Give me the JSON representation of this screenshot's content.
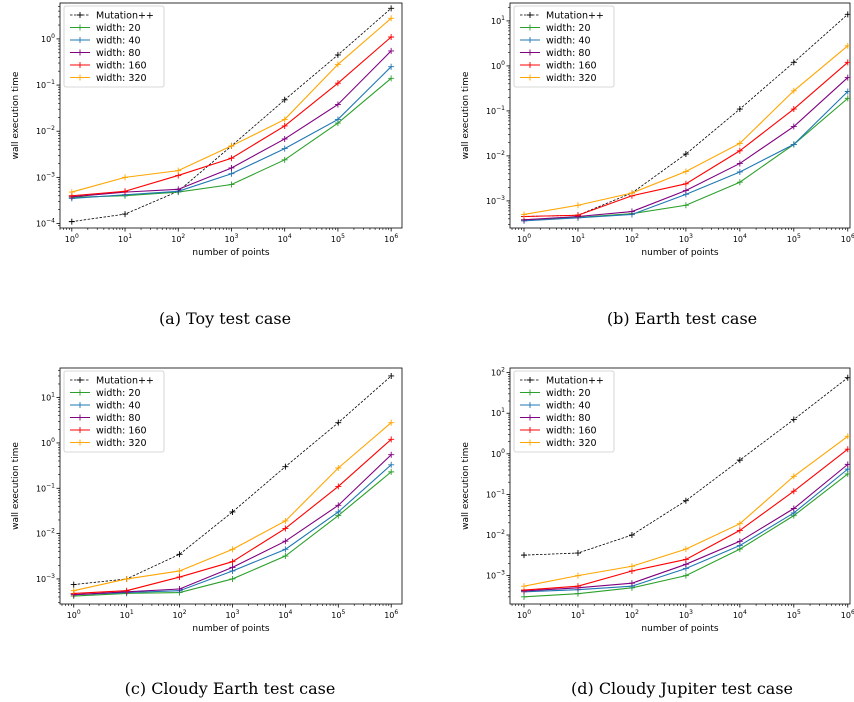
{
  "chart_data": [
    {
      "type": "line",
      "caption": "(a) Toy test case",
      "xlabel": "number of points",
      "ylabel": "wall execution time",
      "x": [
        1,
        10,
        100,
        1000,
        10000,
        100000,
        1000000
      ],
      "x_scale": "log",
      "y_scale": "log",
      "xlim": [
        0.6,
        1600000
      ],
      "ylim": [
        8e-05,
        6
      ],
      "x_ticks": [
        {
          "v": 1,
          "e": "0"
        },
        {
          "v": 10,
          "e": "1"
        },
        {
          "v": 100,
          "e": "2"
        },
        {
          "v": 1000,
          "e": "3"
        },
        {
          "v": 10000,
          "e": "4"
        },
        {
          "v": 100000,
          "e": "5"
        },
        {
          "v": 1000000,
          "e": "6"
        }
      ],
      "y_ticks": [
        {
          "v": 0.0001,
          "e": "−4"
        },
        {
          "v": 0.001,
          "e": "−3"
        },
        {
          "v": 0.01,
          "e": "−2"
        },
        {
          "v": 0.1,
          "e": "−1"
        },
        {
          "v": 1,
          "e": "0"
        }
      ],
      "legend": "top-left",
      "series": [
        {
          "name": "Mutation++",
          "color": "#000000",
          "dashed": true,
          "values": [
            0.00011,
            0.00016,
            0.0005,
            0.0048,
            0.048,
            0.45,
            4.6
          ]
        },
        {
          "name": "width: 20",
          "color": "#2ca02c",
          "dashed": false,
          "values": [
            0.00037,
            0.0004,
            0.00048,
            0.0007,
            0.0024,
            0.015,
            0.14
          ]
        },
        {
          "name": "width: 40",
          "color": "#1f77b4",
          "dashed": false,
          "values": [
            0.00035,
            0.00042,
            0.0005,
            0.0012,
            0.0042,
            0.018,
            0.25
          ]
        },
        {
          "name": "width: 80",
          "color": "#800080",
          "dashed": false,
          "values": [
            0.00038,
            0.00048,
            0.00055,
            0.0016,
            0.0068,
            0.038,
            0.55
          ]
        },
        {
          "name": "width: 160",
          "color": "#ff0000",
          "dashed": false,
          "values": [
            0.0004,
            0.0005,
            0.0011,
            0.0026,
            0.013,
            0.11,
            1.1
          ]
        },
        {
          "name": "width: 320",
          "color": "#ffa500",
          "dashed": false,
          "values": [
            0.00048,
            0.001,
            0.0014,
            0.0048,
            0.018,
            0.28,
            2.8
          ]
        }
      ]
    },
    {
      "type": "line",
      "caption": "(b) Earth test case",
      "xlabel": "number of points",
      "ylabel": "wall execution time",
      "x": [
        1,
        10,
        100,
        1000,
        10000,
        100000,
        1000000
      ],
      "x_scale": "log",
      "y_scale": "log",
      "xlim": [
        0.55,
        1100000
      ],
      "ylim": [
        0.00025,
        25
      ],
      "x_ticks": [
        {
          "v": 1,
          "e": "0"
        },
        {
          "v": 10,
          "e": "1"
        },
        {
          "v": 100,
          "e": "2"
        },
        {
          "v": 1000,
          "e": "3"
        },
        {
          "v": 10000,
          "e": "4"
        },
        {
          "v": 100000,
          "e": "5"
        },
        {
          "v": 1000000,
          "e": "6"
        }
      ],
      "y_ticks": [
        {
          "v": 0.001,
          "e": "−3"
        },
        {
          "v": 0.01,
          "e": "−2"
        },
        {
          "v": 0.1,
          "e": "−1"
        },
        {
          "v": 1,
          "e": "0"
        },
        {
          "v": 10,
          "e": "1"
        }
      ],
      "legend": "top-left",
      "series": [
        {
          "name": "Mutation++",
          "color": "#000000",
          "dashed": true,
          "values": [
            0.00045,
            0.00048,
            0.0015,
            0.011,
            0.11,
            1.2,
            14
          ]
        },
        {
          "name": "width: 20",
          "color": "#2ca02c",
          "dashed": false,
          "values": [
            0.00038,
            0.00043,
            0.00052,
            0.0008,
            0.0026,
            0.018,
            0.19
          ]
        },
        {
          "name": "width: 40",
          "color": "#1f77b4",
          "dashed": false,
          "values": [
            0.00036,
            0.00042,
            0.0005,
            0.0014,
            0.0044,
            0.018,
            0.27
          ]
        },
        {
          "name": "width: 80",
          "color": "#800080",
          "dashed": false,
          "values": [
            0.00038,
            0.00045,
            0.00058,
            0.0017,
            0.0068,
            0.045,
            0.55
          ]
        },
        {
          "name": "width: 160",
          "color": "#ff0000",
          "dashed": false,
          "values": [
            0.00045,
            0.00048,
            0.0013,
            0.0024,
            0.013,
            0.11,
            1.2
          ]
        },
        {
          "name": "width: 320",
          "color": "#ffa500",
          "dashed": false,
          "values": [
            0.0005,
            0.0008,
            0.0015,
            0.0045,
            0.019,
            0.28,
            2.8
          ]
        }
      ]
    },
    {
      "type": "line",
      "caption": "(c) Cloudy Earth test case",
      "xlabel": "number of points",
      "ylabel": "wall execution time",
      "x": [
        1,
        10,
        100,
        1000,
        10000,
        100000,
        1000000
      ],
      "x_scale": "log",
      "y_scale": "log",
      "xlim": [
        0.55,
        1600000
      ],
      "ylim": [
        0.00028,
        45
      ],
      "x_ticks": [
        {
          "v": 1,
          "e": "0"
        },
        {
          "v": 10,
          "e": "1"
        },
        {
          "v": 100,
          "e": "2"
        },
        {
          "v": 1000,
          "e": "3"
        },
        {
          "v": 10000,
          "e": "4"
        },
        {
          "v": 100000,
          "e": "5"
        },
        {
          "v": 1000000,
          "e": "6"
        }
      ],
      "y_ticks": [
        {
          "v": 0.001,
          "e": "−3"
        },
        {
          "v": 0.01,
          "e": "−2"
        },
        {
          "v": 0.1,
          "e": "−1"
        },
        {
          "v": 1,
          "e": "0"
        },
        {
          "v": 10,
          "e": "1"
        }
      ],
      "legend": "top-left",
      "series": [
        {
          "name": "Mutation++",
          "color": "#000000",
          "dashed": true,
          "values": [
            0.00075,
            0.001,
            0.0035,
            0.03,
            0.3,
            2.8,
            30
          ]
        },
        {
          "name": "width: 20",
          "color": "#2ca02c",
          "dashed": false,
          "values": [
            0.00042,
            0.00048,
            0.0005,
            0.001,
            0.0032,
            0.025,
            0.23
          ]
        },
        {
          "name": "width: 40",
          "color": "#1f77b4",
          "dashed": false,
          "values": [
            0.00045,
            0.0005,
            0.00055,
            0.0015,
            0.0045,
            0.03,
            0.33
          ]
        },
        {
          "name": "width: 80",
          "color": "#800080",
          "dashed": false,
          "values": [
            0.00045,
            0.00052,
            0.0006,
            0.0018,
            0.0068,
            0.042,
            0.55
          ]
        },
        {
          "name": "width: 160",
          "color": "#ff0000",
          "dashed": false,
          "values": [
            0.00048,
            0.00055,
            0.0011,
            0.0024,
            0.013,
            0.11,
            1.2
          ]
        },
        {
          "name": "width: 320",
          "color": "#ffa500",
          "dashed": false,
          "values": [
            0.00055,
            0.001,
            0.0015,
            0.0045,
            0.019,
            0.28,
            2.8
          ]
        }
      ]
    },
    {
      "type": "line",
      "caption": "(d) Cloudy Jupiter test case",
      "xlabel": "number of points",
      "ylabel": "wall execution time",
      "x": [
        1,
        10,
        100,
        1000,
        10000,
        100000,
        1000000
      ],
      "x_scale": "log",
      "y_scale": "log",
      "xlim": [
        0.55,
        1100000
      ],
      "ylim": [
        0.0002,
        130
      ],
      "x_ticks": [
        {
          "v": 1,
          "e": "0"
        },
        {
          "v": 10,
          "e": "1"
        },
        {
          "v": 100,
          "e": "2"
        },
        {
          "v": 1000,
          "e": "3"
        },
        {
          "v": 10000,
          "e": "4"
        },
        {
          "v": 100000,
          "e": "5"
        },
        {
          "v": 1000000,
          "e": "6"
        }
      ],
      "y_ticks": [
        {
          "v": 0.001,
          "e": "−3"
        },
        {
          "v": 0.01,
          "e": "−2"
        },
        {
          "v": 0.1,
          "e": "−1"
        },
        {
          "v": 1,
          "e": "0"
        },
        {
          "v": 10,
          "e": "1"
        },
        {
          "v": 100,
          "e": "2"
        }
      ],
      "legend": "top-left",
      "series": [
        {
          "name": "Mutation++",
          "color": "#000000",
          "dashed": true,
          "values": [
            0.0032,
            0.0036,
            0.01,
            0.07,
            0.7,
            7,
            75
          ]
        },
        {
          "name": "width: 20",
          "color": "#2ca02c",
          "dashed": false,
          "values": [
            0.0003,
            0.00036,
            0.0005,
            0.001,
            0.0045,
            0.03,
            0.32
          ]
        },
        {
          "name": "width: 40",
          "color": "#1f77b4",
          "dashed": false,
          "values": [
            0.0004,
            0.00045,
            0.00055,
            0.0015,
            0.0055,
            0.035,
            0.42
          ]
        },
        {
          "name": "width: 80",
          "color": "#800080",
          "dashed": false,
          "values": [
            0.00042,
            0.0005,
            0.00065,
            0.0019,
            0.007,
            0.045,
            0.55
          ]
        },
        {
          "name": "width: 160",
          "color": "#ff0000",
          "dashed": false,
          "values": [
            0.00044,
            0.00055,
            0.0013,
            0.0025,
            0.013,
            0.12,
            1.3
          ]
        },
        {
          "name": "width: 320",
          "color": "#ffa500",
          "dashed": false,
          "values": [
            0.00055,
            0.001,
            0.0017,
            0.0045,
            0.019,
            0.28,
            2.7
          ]
        }
      ]
    }
  ]
}
